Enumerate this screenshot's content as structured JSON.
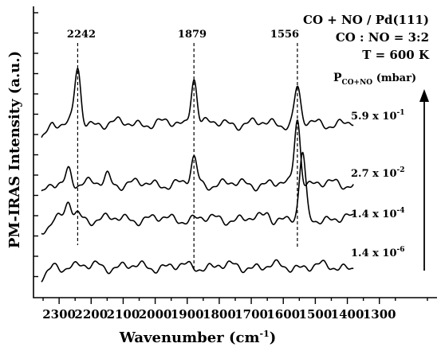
{
  "chart_data": {
    "type": "line",
    "xlabel": "Wavenumber (cm-1)",
    "xlabel_main": "Wavenumber (cm",
    "xlabel_sup": "-1",
    "xlabel_end": ")",
    "ylabel": "PM-IRAS Intensity (a.u.)",
    "xlim": [
      2380,
      1120
    ],
    "x_reversed": true,
    "x_ticks": [
      "2300",
      "2200",
      "2100",
      "2000",
      "1900",
      "1800",
      "1700",
      "1600",
      "1500",
      "1400",
      "1300"
    ],
    "annotations": [
      "CO + NO / Pd(111)",
      "CO : NO = 3:2",
      "T = 600 K"
    ],
    "pressure_axis_label": "P",
    "pressure_axis_sub": "CO+NO",
    "pressure_axis_unit": "(mbar)",
    "peaks": [
      {
        "x": 2242,
        "label": "2242"
      },
      {
        "x": 1879,
        "label": "1879"
      },
      {
        "x": 1556,
        "label": "1556"
      }
    ],
    "series": [
      {
        "label_base": "1.4 x 10",
        "label_exp": "-6",
        "offset": 0.0,
        "peaks": [
          [
            2270,
            0.06
          ],
          [
            2180,
            0.05
          ],
          [
            1800,
            0.04
          ]
        ]
      },
      {
        "label_base": "1.4 x 10",
        "label_exp": "-4",
        "offset": 1.5,
        "peaks": [
          [
            2270,
            0.5
          ],
          [
            2242,
            0.15
          ],
          [
            1540,
            2.0
          ],
          [
            1650,
            0.2
          ]
        ]
      },
      {
        "label_base": "2.7 x 10",
        "label_exp": "-2",
        "offset": 2.6,
        "peaks": [
          [
            2270,
            0.5
          ],
          [
            2150,
            0.3
          ],
          [
            1879,
            0.8
          ],
          [
            1556,
            2.1
          ]
        ]
      },
      {
        "label_base": "5.9 x 10",
        "label_exp": "-1",
        "offset": 4.5,
        "peaks": [
          [
            2242,
            1.7
          ],
          [
            1879,
            1.5
          ],
          [
            1556,
            1.1
          ]
        ]
      }
    ]
  }
}
